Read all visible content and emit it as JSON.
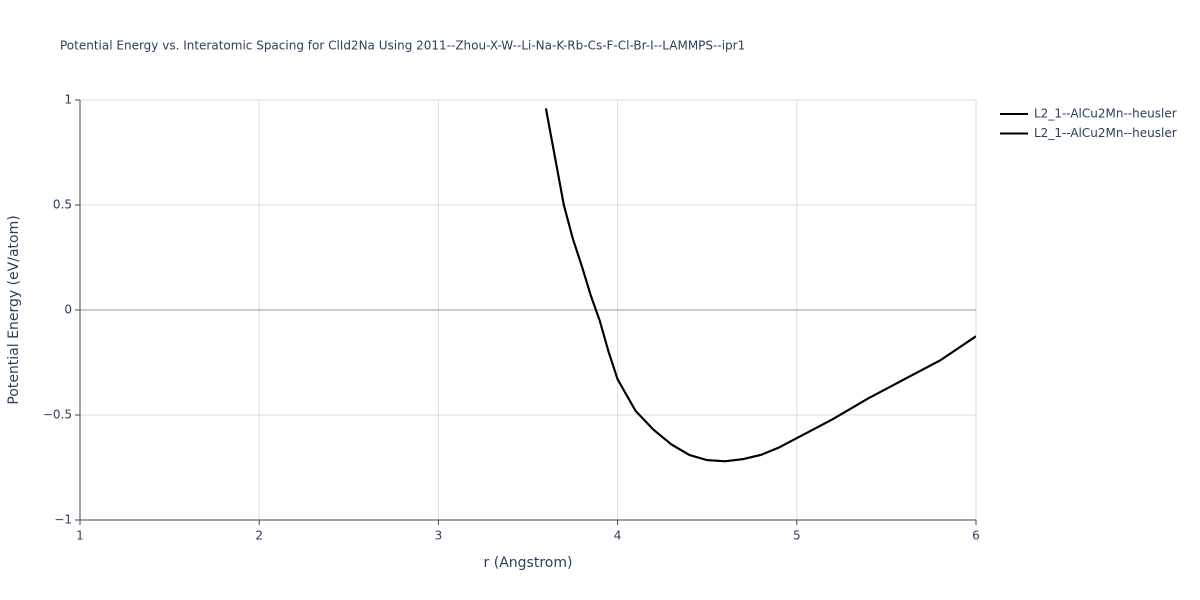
{
  "chart_data": {
    "type": "line",
    "title": "Potential Energy vs. Interatomic Spacing for ClId2Na Using 2011--Zhou-X-W--Li-Na-K-Rb-Cs-F-Cl-Br-I--LAMMPS--ipr1",
    "x_label": "r (Angstrom)",
    "y_label": "Potential Energy (eV/atom)",
    "x": [
      3.6,
      3.65,
      3.7,
      3.75,
      3.8,
      3.85,
      3.9,
      3.95,
      4.0,
      4.1,
      4.2,
      4.3,
      4.4,
      4.5,
      4.6,
      4.7,
      4.8,
      4.9,
      5.0,
      5.2,
      5.4,
      5.6,
      5.8,
      6.0
    ],
    "series": [
      {
        "name": "L2_1--AlCu2Mn--heusler",
        "color": "#000000",
        "values": [
          0.96,
          0.73,
          0.5,
          0.34,
          0.21,
          0.07,
          -0.05,
          -0.2,
          -0.33,
          -0.48,
          -0.57,
          -0.64,
          -0.69,
          -0.715,
          -0.72,
          -0.71,
          -0.69,
          -0.655,
          -0.61,
          -0.52,
          -0.42,
          -0.33,
          -0.24,
          -0.125
        ]
      },
      {
        "name": "L2_1--AlCu2Mn--heusler",
        "color": "#000000",
        "values": [
          0.96,
          0.73,
          0.5,
          0.34,
          0.21,
          0.07,
          -0.05,
          -0.2,
          -0.33,
          -0.48,
          -0.57,
          -0.64,
          -0.69,
          -0.715,
          -0.72,
          -0.71,
          -0.69,
          -0.655,
          -0.61,
          -0.52,
          -0.42,
          -0.33,
          -0.24,
          -0.125
        ]
      }
    ],
    "xlim": [
      1,
      6
    ],
    "xticks": [
      1,
      2,
      3,
      4,
      5,
      6
    ],
    "ylim": [
      -1,
      1
    ],
    "yticks": [
      {
        "value": -1,
        "label": "−1"
      },
      {
        "value": -0.5,
        "label": "−0.5"
      },
      0,
      0.5,
      1
    ],
    "grid": true,
    "legend": "right"
  }
}
